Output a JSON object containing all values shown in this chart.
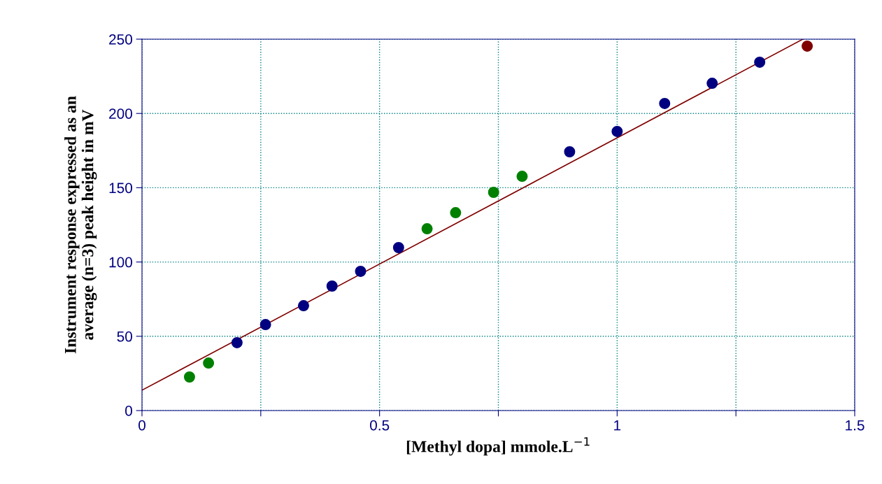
{
  "chart_data": {
    "type": "scatter",
    "xlabel": "[Methyl dopa] mmole.L$^{−1}$",
    "ylabel": "Instrument response expressed as an\naverage (n=3) peak height in mV",
    "xlim": [
      0,
      1.5
    ],
    "ylim": [
      0,
      250
    ],
    "xticks": [
      0,
      {
        "value": 0.25,
        "label": null
      },
      0.5,
      {
        "value": 0.75,
        "label": null
      },
      1,
      {
        "value": 1.25,
        "label": null
      },
      1.5
    ],
    "yticks": [
      0,
      50,
      100,
      150,
      200,
      250
    ],
    "grid": true,
    "marker": "circle",
    "series": [
      {
        "color": "#800000",
        "type": "line",
        "marker": "none",
        "x": [
          0,
          1.391
        ],
        "values": [
          13.7,
          250
        ]
      },
      {
        "color": "#008000",
        "x": [
          0.1,
          0.14,
          0.6,
          0.66,
          0.74,
          0.8
        ],
        "values": [
          22.6,
          32,
          122.4,
          133.2,
          146.9,
          157.7
        ]
      },
      {
        "color": "#000080",
        "x": [
          0.2,
          0.26,
          0.34,
          0.4,
          0.46,
          0.54,
          0.9,
          1.0,
          1.1,
          1.2,
          1.3
        ],
        "values": [
          45.7,
          57.9,
          70.6,
          83.8,
          93.7,
          109.7,
          174.2,
          187.9,
          206.7,
          220.3,
          234.5
        ]
      },
      {
        "color": "#800000",
        "x": [
          1.4
        ],
        "values": [
          245.3
        ]
      }
    ]
  }
}
